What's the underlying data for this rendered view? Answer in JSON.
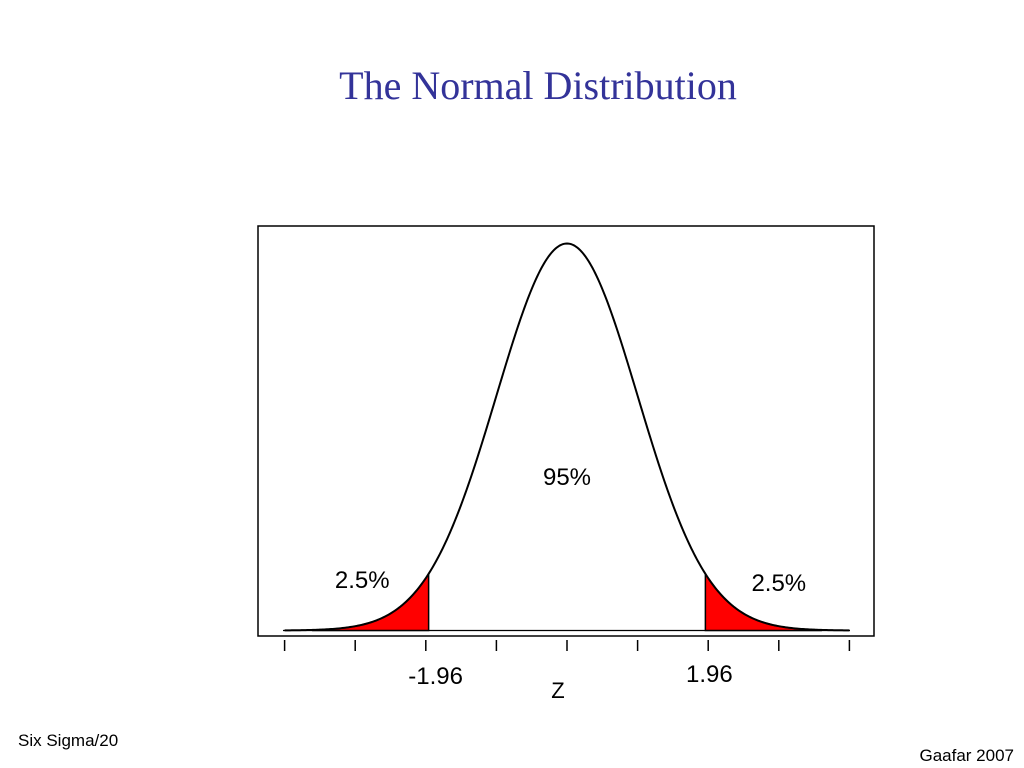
{
  "slide": {
    "title": "The Normal Distribution",
    "footer_left": "Six Sigma/20",
    "footer_right": "Gaafar 2007"
  },
  "colors": {
    "title": "#333399",
    "tail_fill": "#ff0000",
    "curve": "#000000",
    "background": "#ffffff"
  },
  "chart_data": {
    "type": "area",
    "title": "",
    "xlabel": "Z",
    "ylabel": "",
    "distribution": "standard normal",
    "mean": 0,
    "sd": 1,
    "xlim": [
      -4,
      4
    ],
    "major_ticks": [
      -4,
      -3,
      -2,
      -1,
      0,
      1,
      2,
      3,
      4
    ],
    "tick_labels": [
      {
        "x": -1.96,
        "label": "-1.96"
      },
      {
        "x": 1.96,
        "label": "1.96"
      }
    ],
    "shaded_regions": [
      {
        "from": -3.6,
        "to": -1.96,
        "area_label": "2.5%",
        "color": "#ff0000"
      },
      {
        "from": 1.96,
        "to": 3.6,
        "area_label": "2.5%",
        "color": "#ff0000"
      }
    ],
    "annotations": [
      {
        "text": "95%",
        "x": 0,
        "region": "center"
      },
      {
        "text": "2.5%",
        "x": -2.9,
        "region": "left tail"
      },
      {
        "text": "2.5%",
        "x": 3.0,
        "region": "right tail"
      }
    ],
    "grid": false,
    "legend": "none"
  }
}
